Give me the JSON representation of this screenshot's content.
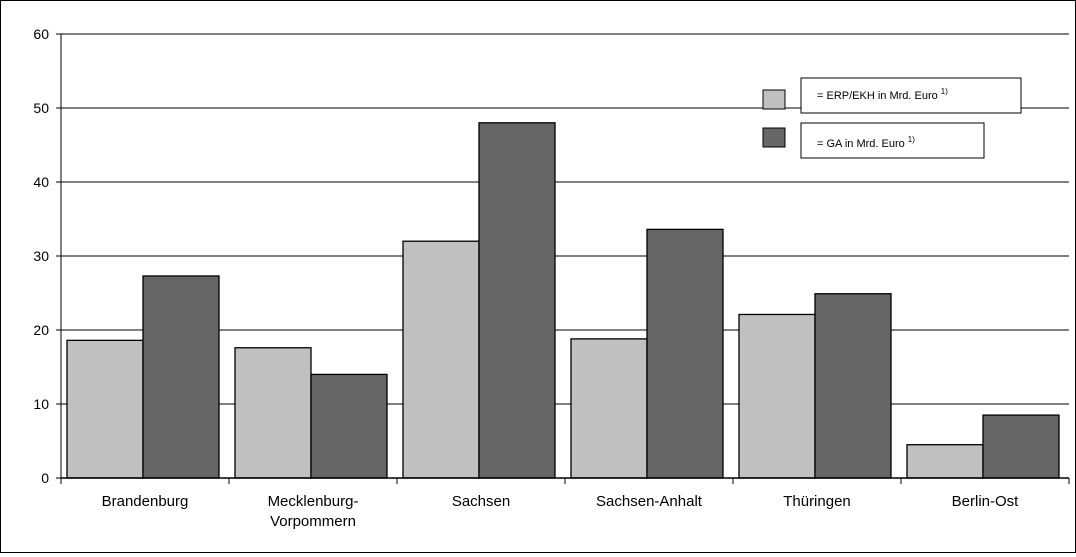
{
  "chart_data": {
    "type": "bar",
    "categories": [
      [
        "Brandenburg"
      ],
      [
        "Mecklenburg-",
        "Vorpommern"
      ],
      [
        "Sachsen"
      ],
      [
        "Sachsen-Anhalt"
      ],
      [
        "Thüringen"
      ],
      [
        "Berlin-Ost"
      ]
    ],
    "series": [
      {
        "label": "= ERP/EKH in Mrd.  Euro",
        "footnote": "1)",
        "color": "#c0c0c0",
        "values": [
          18.6,
          17.6,
          32.0,
          18.8,
          22.1,
          4.5
        ]
      },
      {
        "label": "= GA in Mrd. Euro",
        "footnote": "1)",
        "color": "#666666",
        "values": [
          27.3,
          14.0,
          48.0,
          33.6,
          24.9,
          8.5
        ]
      }
    ],
    "ylim": [
      0,
      60
    ],
    "yticks": [
      "0",
      "10",
      "20",
      "30",
      "40",
      "50",
      "60"
    ],
    "grid": true,
    "legend_position": "top-right"
  }
}
